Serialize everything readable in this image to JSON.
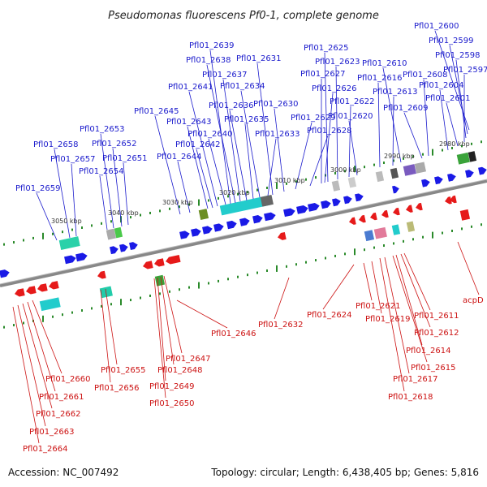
{
  "title": "Pseudomonas fluorescens Pf0-1, complete genome",
  "footer": {
    "accession": "Accession: NC_007492",
    "summary": "Topology: circular; Length: 6,438,405 bp; Genes: 5,816"
  },
  "colors": {
    "top_label": "#1a1acc",
    "bottom_label": "#cc1111",
    "forward_gene": "#1a1ae6",
    "reverse_gene": "#e61a1a",
    "tick": "#2a8a2a",
    "backbone": "#888888"
  },
  "scale_labels": [
    "3050 kbp",
    "3040 kbp",
    "3030 kbp",
    "3020 kbp",
    "3010 kbp",
    "3000 kbp",
    "2990 kbp",
    "2980 kbp"
  ],
  "top_genes": [
    "Pfl01_2600",
    "Pfl01_2599",
    "Pfl01_2598",
    "Pfl01_2597",
    "Pfl01_2601",
    "Pfl01_2604",
    "Pfl01_2608",
    "Pfl01_2609",
    "Pfl01_2610",
    "Pfl01_2613",
    "Pfl01_2616",
    "Pfl01_2620",
    "Pfl01_2622",
    "Pfl01_2623",
    "Pfl01_2625",
    "Pfl01_2626",
    "Pfl01_2627",
    "Pfl01_2628",
    "Pfl01_2629",
    "Pfl01_2630",
    "Pfl01_2631",
    "Pfl01_2633",
    "Pfl01_2634",
    "Pfl01_2635",
    "Pfl01_2636",
    "Pfl01_2637",
    "Pfl01_2638",
    "Pfl01_2639",
    "Pfl01_2640",
    "Pfl01_2641",
    "Pfl01_2642",
    "Pfl01_2643",
    "Pfl01_2644",
    "Pfl01_2645",
    "Pfl01_2651",
    "Pfl01_2652",
    "Pfl01_2653",
    "Pfl01_2654",
    "Pfl01_2657",
    "Pfl01_2658",
    "Pfl01_2659"
  ],
  "bottom_genes": [
    "Pfl01_2660",
    "Pfl01_2661",
    "Pfl01_2662",
    "Pfl01_2663",
    "Pfl01_2664",
    "Pfl01_2655",
    "Pfl01_2656",
    "Pfl01_2647",
    "Pfl01_2648",
    "Pfl01_2649",
    "Pfl01_2650",
    "Pfl01_2646",
    "Pfl01_2632",
    "Pfl01_2624",
    "Pfl01_2621",
    "Pfl01_2619",
    "Pfl01_2611",
    "Pfl01_2612",
    "Pfl01_2614",
    "Pfl01_2615",
    "Pfl01_2617",
    "Pfl01_2618",
    "acpD"
  ]
}
